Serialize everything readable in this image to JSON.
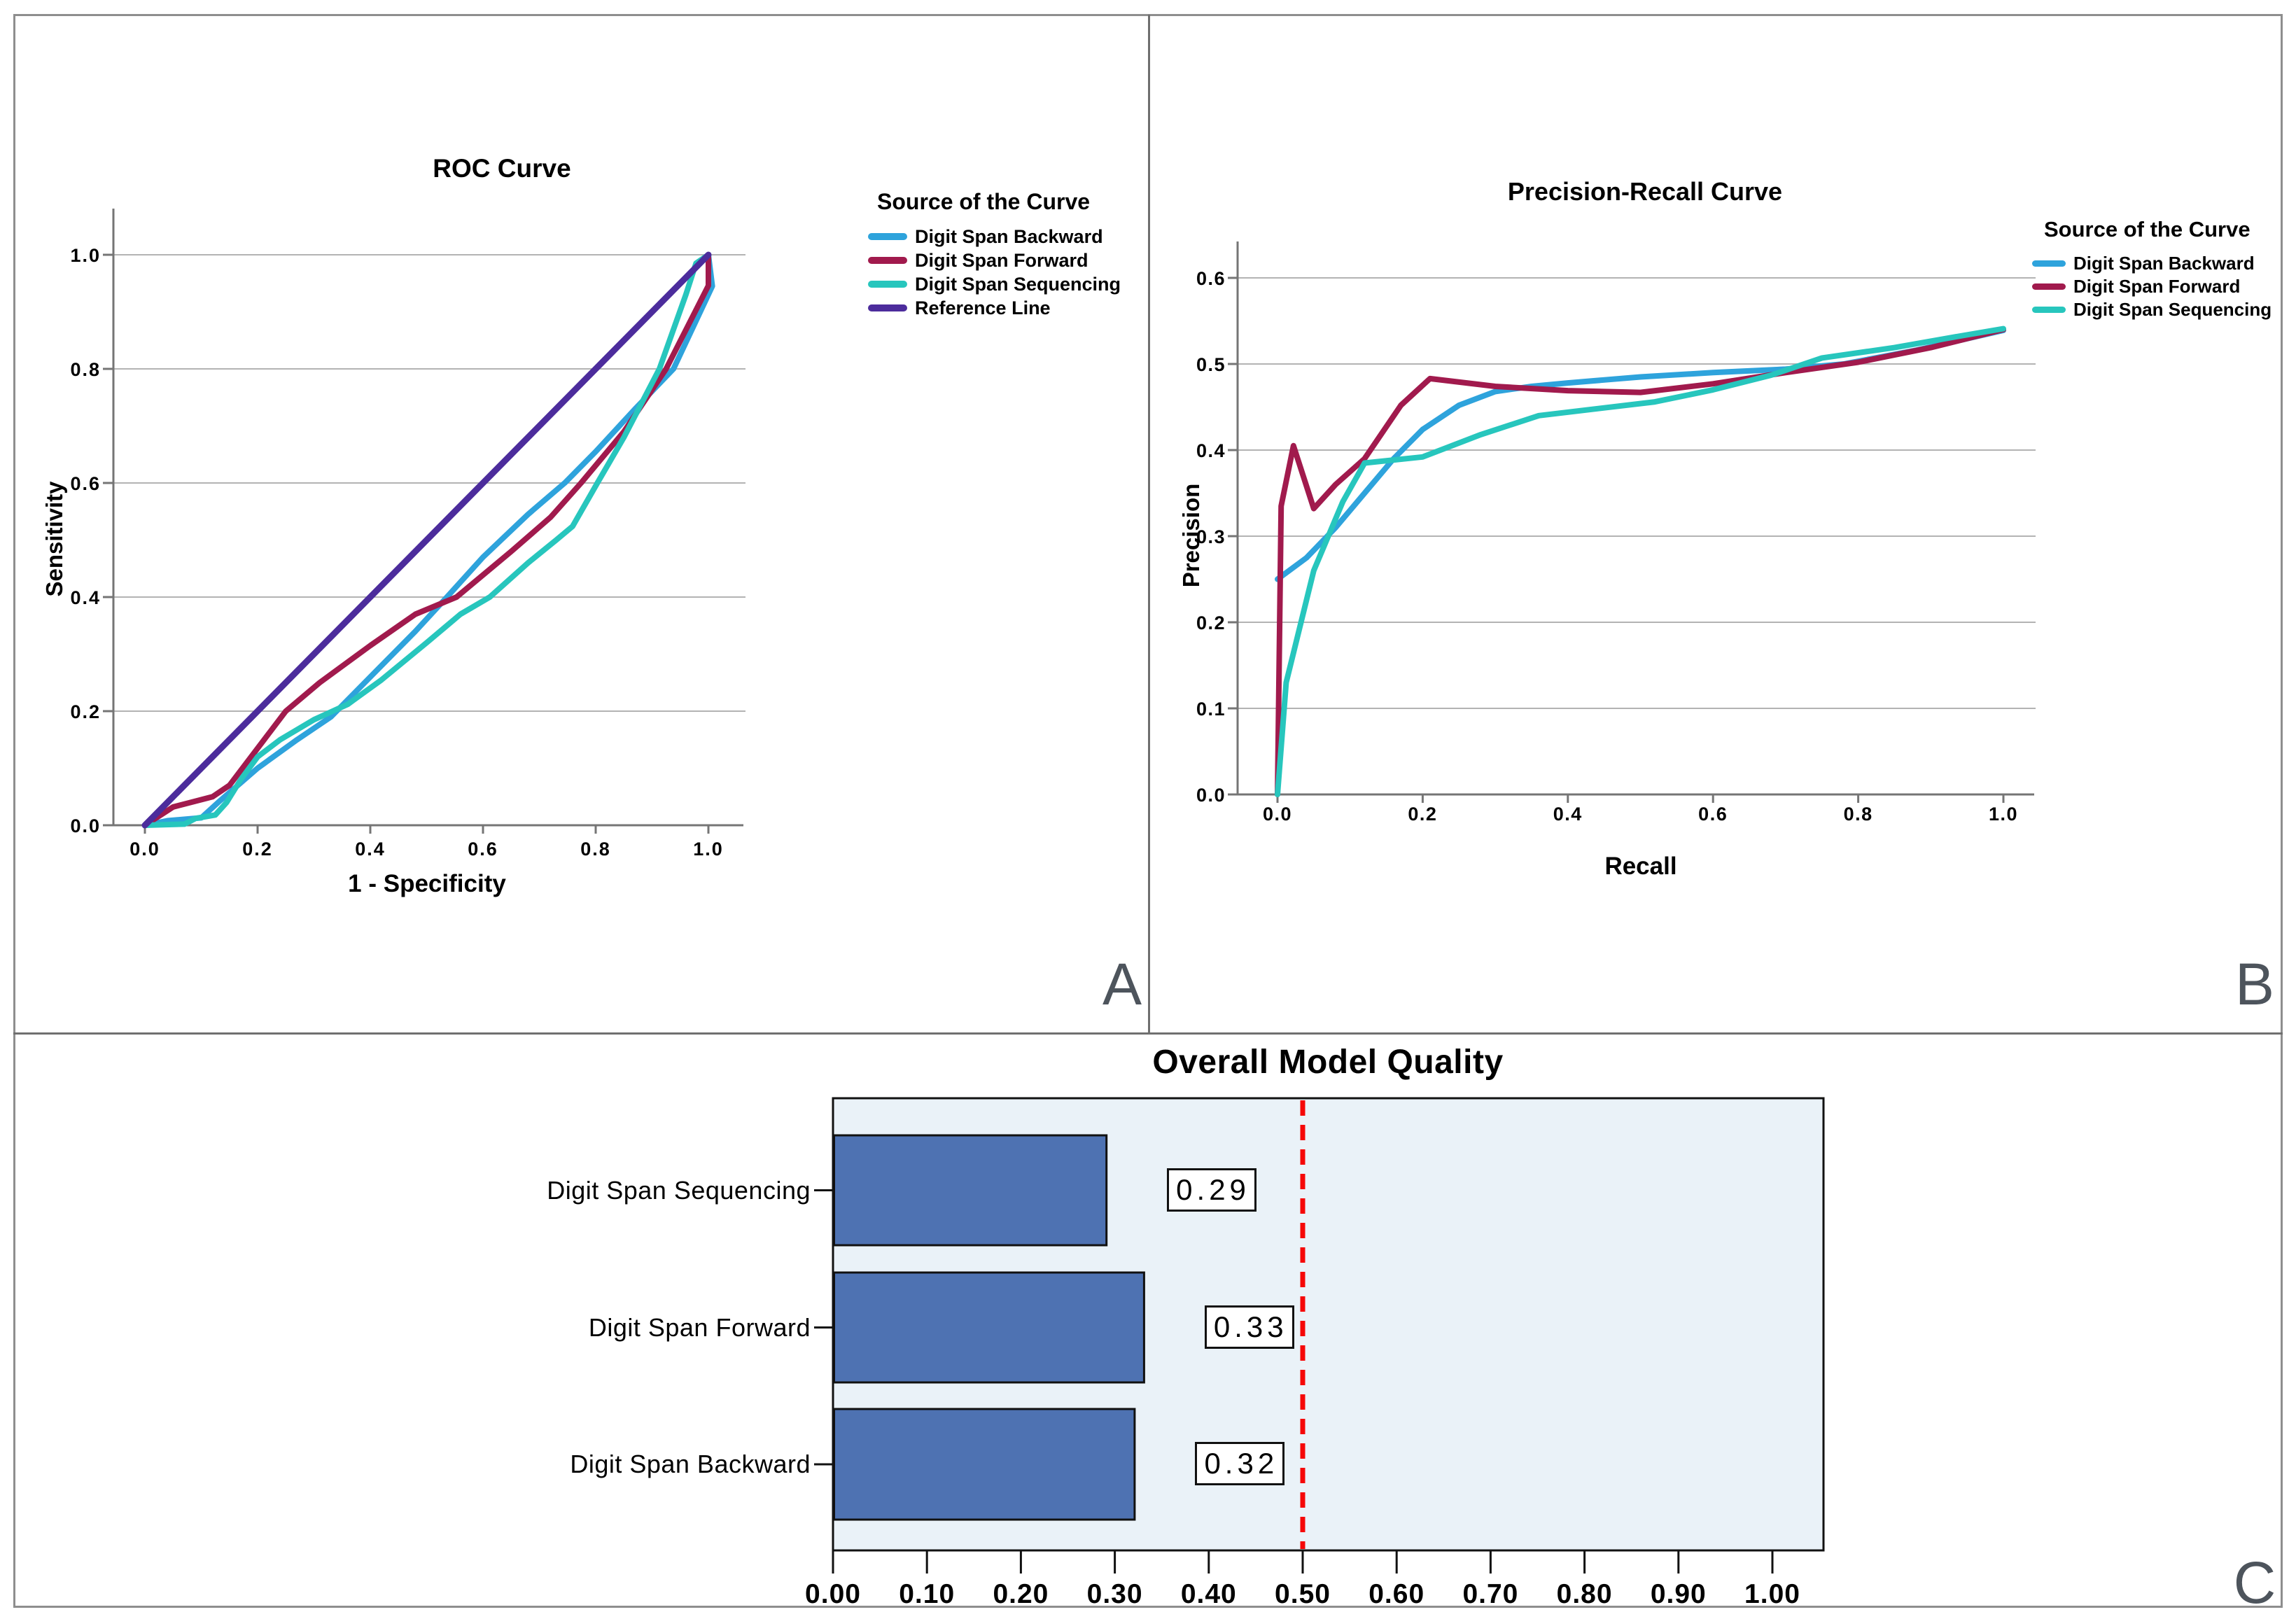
{
  "figure": {
    "panels": [
      {
        "label": "A"
      },
      {
        "label": "B"
      },
      {
        "label": "C"
      }
    ]
  },
  "colors": {
    "digit_span_backward": "#2EA3DC",
    "digit_span_forward": "#A11A4D",
    "digit_span_sequencing": "#27C6BD",
    "reference_line": "#4C2C9C",
    "bar_fill": "#4E72B2",
    "bar_border": "#111111",
    "threshold_line": "#F60808",
    "plot_bg_c": "#EAF2F8",
    "gridline": "#B3B3B3",
    "axis": "#757575"
  },
  "chart_data": [
    {
      "id": "roc",
      "type": "line",
      "panel": "A",
      "title": "ROC Curve",
      "xlabel": "1 - Specificity",
      "ylabel": "Sensitivity",
      "xlim": [
        0,
        1
      ],
      "ylim": [
        0,
        1
      ],
      "xticks": [
        "0.0",
        "0.2",
        "0.4",
        "0.6",
        "0.8",
        "1.0"
      ],
      "yticks": [
        "0.0",
        "0.2",
        "0.4",
        "0.6",
        "0.8",
        "1.0"
      ],
      "grid": "horizontal",
      "legend_title": "Source of the Curve",
      "legend_position": "right",
      "series": [
        {
          "name": "Digit Span Backward",
          "color": "digit_span_backward",
          "points": [
            [
              0,
              0
            ],
            [
              0.04,
              0.008
            ],
            [
              0.1,
              0.013
            ],
            [
              0.13,
              0.04
            ],
            [
              0.2,
              0.1
            ],
            [
              0.27,
              0.15
            ],
            [
              0.33,
              0.19
            ],
            [
              0.42,
              0.28
            ],
            [
              0.48,
              0.34
            ],
            [
              0.536,
              0.4
            ],
            [
              0.6,
              0.47
            ],
            [
              0.68,
              0.545
            ],
            [
              0.745,
              0.6
            ],
            [
              0.8,
              0.655
            ],
            [
              0.87,
              0.73
            ],
            [
              0.938,
              0.8
            ],
            [
              1.007,
              0.945
            ],
            [
              1.0,
              1.0
            ]
          ]
        },
        {
          "name": "Digit Span Forward",
          "color": "digit_span_forward",
          "points": [
            [
              0,
              0
            ],
            [
              0.05,
              0.032
            ],
            [
              0.12,
              0.05
            ],
            [
              0.15,
              0.07
            ],
            [
              0.25,
              0.2
            ],
            [
              0.31,
              0.25
            ],
            [
              0.4,
              0.315
            ],
            [
              0.48,
              0.37
            ],
            [
              0.553,
              0.4
            ],
            [
              0.65,
              0.48
            ],
            [
              0.72,
              0.54
            ],
            [
              0.774,
              0.6
            ],
            [
              0.85,
              0.69
            ],
            [
              0.925,
              0.8
            ],
            [
              1.0,
              0.946
            ],
            [
              1.0,
              1.0
            ]
          ]
        },
        {
          "name": "Digit Span Sequencing",
          "color": "digit_span_sequencing",
          "points": [
            [
              0,
              0
            ],
            [
              0.07,
              0.002
            ],
            [
              0.09,
              0.012
            ],
            [
              0.125,
              0.018
            ],
            [
              0.145,
              0.04
            ],
            [
              0.17,
              0.08
            ],
            [
              0.2,
              0.12
            ],
            [
              0.24,
              0.15
            ],
            [
              0.3,
              0.185
            ],
            [
              0.36,
              0.212
            ],
            [
              0.42,
              0.255
            ],
            [
              0.5,
              0.32
            ],
            [
              0.56,
              0.37
            ],
            [
              0.612,
              0.4
            ],
            [
              0.68,
              0.46
            ],
            [
              0.73,
              0.5
            ],
            [
              0.759,
              0.524
            ],
            [
              0.803,
              0.6
            ],
            [
              0.85,
              0.68
            ],
            [
              0.913,
              0.8
            ],
            [
              0.96,
              0.93
            ],
            [
              0.978,
              0.985
            ],
            [
              1.0,
              1.0
            ]
          ]
        },
        {
          "name": "Reference Line",
          "color": "reference_line",
          "points": [
            [
              0,
              0
            ],
            [
              1,
              1
            ]
          ]
        }
      ]
    },
    {
      "id": "precision_recall",
      "type": "line",
      "panel": "B",
      "title": "Precision-Recall Curve",
      "xlabel": "Recall",
      "ylabel": "Precision",
      "xlim": [
        0,
        1
      ],
      "ylim": [
        0,
        0.6
      ],
      "xticks": [
        "0.0",
        "0.2",
        "0.4",
        "0.6",
        "0.8",
        "1.0"
      ],
      "yticks": [
        "0.0",
        "0.1",
        "0.2",
        "0.3",
        "0.4",
        "0.5",
        "0.6"
      ],
      "grid": "horizontal",
      "legend_title": "Source of the Curve",
      "legend_position": "right",
      "series": [
        {
          "name": "Digit Span Backward",
          "color": "digit_span_backward",
          "points": [
            [
              0,
              0.25
            ],
            [
              0.04,
              0.275
            ],
            [
              0.08,
              0.31
            ],
            [
              0.12,
              0.35
            ],
            [
              0.16,
              0.39
            ],
            [
              0.2,
              0.424
            ],
            [
              0.25,
              0.452
            ],
            [
              0.3,
              0.468
            ],
            [
              0.35,
              0.474
            ],
            [
              0.4,
              0.478
            ],
            [
              0.5,
              0.485
            ],
            [
              0.6,
              0.49
            ],
            [
              0.7,
              0.494
            ],
            [
              0.78,
              0.5
            ],
            [
              0.88,
              0.516
            ],
            [
              1.0,
              0.539
            ]
          ]
        },
        {
          "name": "Digit Span Forward",
          "color": "digit_span_forward",
          "points": [
            [
              0,
              0
            ],
            [
              0.005,
              0.335
            ],
            [
              0.022,
              0.405
            ],
            [
              0.05,
              0.332
            ],
            [
              0.08,
              0.36
            ],
            [
              0.12,
              0.39
            ],
            [
              0.17,
              0.452
            ],
            [
              0.21,
              0.483
            ],
            [
              0.3,
              0.474
            ],
            [
              0.4,
              0.469
            ],
            [
              0.5,
              0.467
            ],
            [
              0.6,
              0.477
            ],
            [
              0.7,
              0.49
            ],
            [
              0.8,
              0.502
            ],
            [
              0.9,
              0.519
            ],
            [
              1.0,
              0.54
            ]
          ]
        },
        {
          "name": "Digit Span Sequencing",
          "color": "digit_span_sequencing",
          "points": [
            [
              0,
              0
            ],
            [
              0.012,
              0.13
            ],
            [
              0.05,
              0.26
            ],
            [
              0.09,
              0.34
            ],
            [
              0.12,
              0.385
            ],
            [
              0.2,
              0.392
            ],
            [
              0.28,
              0.418
            ],
            [
              0.36,
              0.44
            ],
            [
              0.45,
              0.449
            ],
            [
              0.52,
              0.456
            ],
            [
              0.6,
              0.47
            ],
            [
              0.68,
              0.487
            ],
            [
              0.75,
              0.507
            ],
            [
              0.85,
              0.519
            ],
            [
              0.93,
              0.531
            ],
            [
              1.0,
              0.541
            ]
          ]
        }
      ]
    },
    {
      "id": "overall_model_quality",
      "type": "bar",
      "panel": "C",
      "title": "Overall Model Quality",
      "orientation": "horizontal",
      "categories": [
        "Digit Span Sequencing",
        "Digit Span Forward",
        "Digit Span Backward"
      ],
      "values": [
        0.29,
        0.33,
        0.32
      ],
      "value_labels": [
        "0.29",
        "0.33",
        "0.32"
      ],
      "reference_value": 0.5,
      "xticks": [
        "0.00",
        "0.10",
        "0.20",
        "0.30",
        "0.40",
        "0.50",
        "0.60",
        "0.70",
        "0.80",
        "0.90",
        "1.00"
      ],
      "xlim": [
        0,
        1.054
      ],
      "grid": "off"
    }
  ]
}
